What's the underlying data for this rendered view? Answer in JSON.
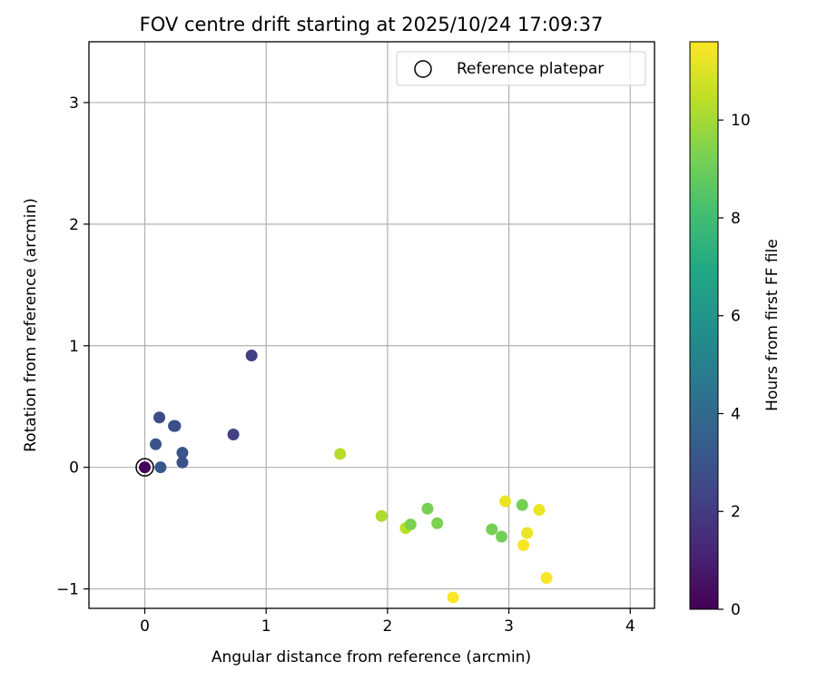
{
  "chart_data": {
    "type": "scatter",
    "title": "FOV centre drift starting at 2025/10/24 17:09:37",
    "xlabel": "Angular distance from reference (arcmin)",
    "ylabel": "Rotation from reference (arcmin)",
    "xlim": [
      -0.46,
      4.2
    ],
    "ylim": [
      -1.16,
      3.5
    ],
    "xticks": [
      0,
      1,
      2,
      3,
      4
    ],
    "yticks": [
      -1,
      0,
      1,
      2,
      3
    ],
    "xtick_labels": [
      "0",
      "1",
      "2",
      "3",
      "4"
    ],
    "ytick_labels": [
      "−1",
      "0",
      "1",
      "2",
      "3"
    ],
    "grid": true,
    "legend_position": "top-right",
    "legend_label": "Reference platepar",
    "reference_point": {
      "x": 0,
      "y": 0
    },
    "colorbar": {
      "label": "Hours from first FF file",
      "colormap": "viridis",
      "range": [
        0,
        11.6
      ],
      "ticks": [
        0,
        2,
        4,
        6,
        8,
        10
      ],
      "tick_labels": [
        "0",
        "2",
        "4",
        "6",
        "8",
        "10"
      ]
    },
    "series": [
      {
        "points": [
          {
            "x": 0.0,
            "y": 0.0,
            "hours": 0.1
          },
          {
            "x": 0.88,
            "y": 0.92,
            "hours": 2.1
          },
          {
            "x": 0.73,
            "y": 0.27,
            "hours": 2.2
          },
          {
            "x": 0.12,
            "y": 0.41,
            "hours": 2.6
          },
          {
            "x": 0.24,
            "y": 0.34,
            "hours": 2.7
          },
          {
            "x": 0.25,
            "y": 0.34,
            "hours": 2.8
          },
          {
            "x": 0.09,
            "y": 0.19,
            "hours": 3.0
          },
          {
            "x": 0.31,
            "y": 0.12,
            "hours": 3.1
          },
          {
            "x": 0.31,
            "y": 0.04,
            "hours": 3.0
          },
          {
            "x": 0.13,
            "y": 0.0,
            "hours": 3.2
          },
          {
            "x": 1.61,
            "y": 0.11,
            "hours": 10.3
          },
          {
            "x": 1.95,
            "y": -0.4,
            "hours": 10.2
          },
          {
            "x": 2.15,
            "y": -0.5,
            "hours": 10.4
          },
          {
            "x": 2.19,
            "y": -0.47,
            "hours": 9.3
          },
          {
            "x": 2.33,
            "y": -0.34,
            "hours": 9.2
          },
          {
            "x": 2.41,
            "y": -0.46,
            "hours": 9.3
          },
          {
            "x": 2.86,
            "y": -0.51,
            "hours": 9.2
          },
          {
            "x": 2.94,
            "y": -0.57,
            "hours": 9.1
          },
          {
            "x": 3.11,
            "y": -0.31,
            "hours": 9.2
          },
          {
            "x": 2.97,
            "y": -0.28,
            "hours": 11.2
          },
          {
            "x": 3.25,
            "y": -0.35,
            "hours": 11.3
          },
          {
            "x": 3.15,
            "y": -0.54,
            "hours": 11.3
          },
          {
            "x": 3.12,
            "y": -0.64,
            "hours": 11.5
          },
          {
            "x": 3.31,
            "y": -0.91,
            "hours": 11.5
          },
          {
            "x": 2.54,
            "y": -1.07,
            "hours": 11.6
          }
        ]
      }
    ]
  }
}
